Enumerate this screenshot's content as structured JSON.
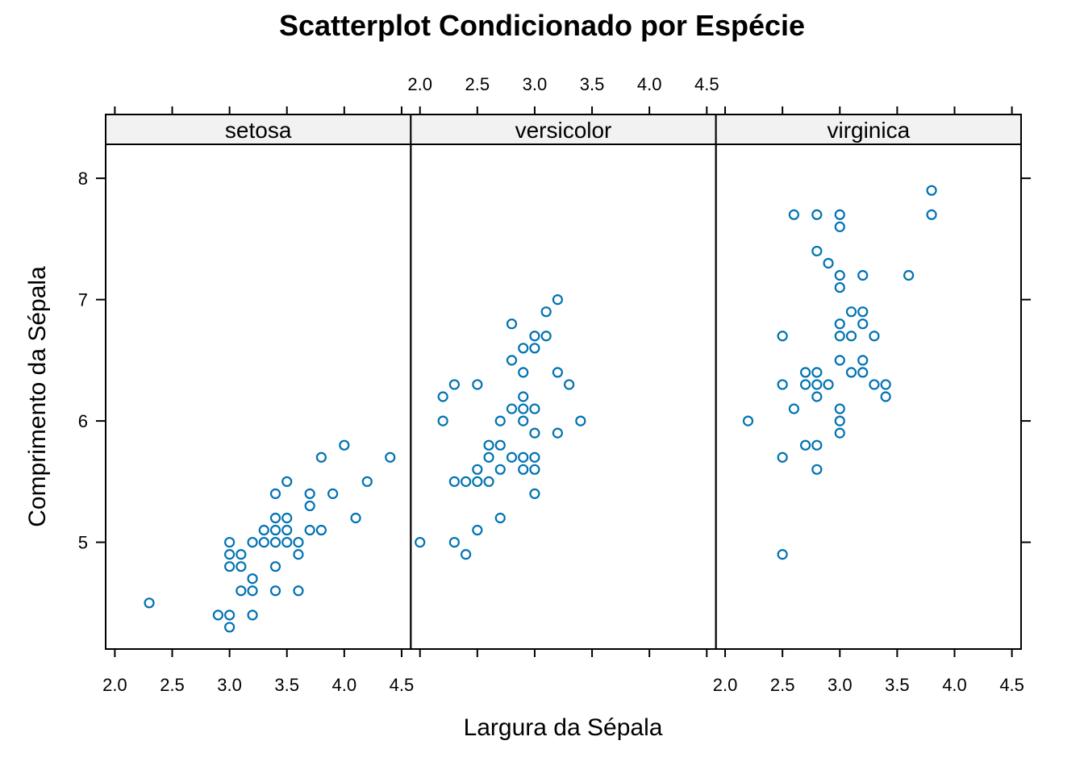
{
  "colors": {
    "point": "#0080ff",
    "point_stroke": "#0072b2",
    "strip_fill": "#f2f2f2",
    "axis": "#000000"
  },
  "chart_data": {
    "type": "scatter",
    "title": "Scatterplot Condicionado por Espécie",
    "xlabel": "Largura da Sépala",
    "ylabel": "Comprimento da Sépala",
    "xlim": [
      1.92,
      4.58
    ],
    "ylim": [
      4.12,
      8.28
    ],
    "x_ticks": [
      "2.0",
      "2.5",
      "3.0",
      "3.5",
      "4.0",
      "4.5"
    ],
    "y_ticks": [
      "5",
      "6",
      "7",
      "8"
    ],
    "marker": "open-circle",
    "panels": [
      {
        "name": "setosa",
        "points": [
          [
            2.3,
            4.5
          ],
          [
            2.9,
            4.4
          ],
          [
            3.0,
            4.4
          ],
          [
            3.0,
            4.3
          ],
          [
            3.0,
            5.0
          ],
          [
            3.0,
            4.9
          ],
          [
            3.0,
            4.8
          ],
          [
            3.1,
            4.9
          ],
          [
            3.1,
            4.8
          ],
          [
            3.1,
            4.6
          ],
          [
            3.2,
            5.0
          ],
          [
            3.2,
            4.7
          ],
          [
            3.2,
            4.6
          ],
          [
            3.2,
            4.4
          ],
          [
            3.3,
            5.1
          ],
          [
            3.3,
            5.0
          ],
          [
            3.4,
            5.4
          ],
          [
            3.4,
            5.2
          ],
          [
            3.4,
            5.1
          ],
          [
            3.4,
            5.0
          ],
          [
            3.4,
            4.8
          ],
          [
            3.4,
            4.6
          ],
          [
            3.5,
            5.5
          ],
          [
            3.5,
            5.2
          ],
          [
            3.5,
            5.1
          ],
          [
            3.5,
            5.0
          ],
          [
            3.6,
            5.0
          ],
          [
            3.6,
            4.9
          ],
          [
            3.6,
            4.6
          ],
          [
            3.7,
            5.4
          ],
          [
            3.7,
            5.3
          ],
          [
            3.7,
            5.1
          ],
          [
            3.8,
            5.7
          ],
          [
            3.8,
            5.1
          ],
          [
            3.9,
            5.4
          ],
          [
            4.0,
            5.8
          ],
          [
            4.1,
            5.2
          ],
          [
            4.2,
            5.5
          ],
          [
            4.4,
            5.7
          ]
        ]
      },
      {
        "name": "versicolor",
        "points": [
          [
            2.0,
            5.0
          ],
          [
            2.2,
            6.2
          ],
          [
            2.2,
            6.0
          ],
          [
            2.3,
            6.3
          ],
          [
            2.3,
            5.5
          ],
          [
            2.3,
            5.0
          ],
          [
            2.4,
            5.5
          ],
          [
            2.4,
            4.9
          ],
          [
            2.5,
            6.3
          ],
          [
            2.5,
            5.6
          ],
          [
            2.5,
            5.5
          ],
          [
            2.5,
            5.1
          ],
          [
            2.6,
            5.8
          ],
          [
            2.6,
            5.7
          ],
          [
            2.6,
            5.5
          ],
          [
            2.7,
            6.0
          ],
          [
            2.7,
            5.8
          ],
          [
            2.7,
            5.6
          ],
          [
            2.7,
            5.2
          ],
          [
            2.8,
            6.8
          ],
          [
            2.8,
            6.5
          ],
          [
            2.8,
            6.1
          ],
          [
            2.8,
            5.7
          ],
          [
            2.9,
            6.6
          ],
          [
            2.9,
            6.4
          ],
          [
            2.9,
            6.2
          ],
          [
            2.9,
            6.1
          ],
          [
            2.9,
            6.0
          ],
          [
            2.9,
            5.7
          ],
          [
            2.9,
            5.6
          ],
          [
            3.0,
            6.7
          ],
          [
            3.0,
            6.6
          ],
          [
            3.0,
            6.1
          ],
          [
            3.0,
            5.9
          ],
          [
            3.0,
            5.7
          ],
          [
            3.0,
            5.6
          ],
          [
            3.0,
            5.4
          ],
          [
            3.1,
            6.9
          ],
          [
            3.1,
            6.7
          ],
          [
            3.2,
            7.0
          ],
          [
            3.2,
            6.4
          ],
          [
            3.2,
            5.9
          ],
          [
            3.3,
            6.3
          ],
          [
            3.4,
            6.0
          ]
        ]
      },
      {
        "name": "virginica",
        "points": [
          [
            2.2,
            6.0
          ],
          [
            2.5,
            6.7
          ],
          [
            2.5,
            6.3
          ],
          [
            2.5,
            5.7
          ],
          [
            2.5,
            4.9
          ],
          [
            2.6,
            7.7
          ],
          [
            2.6,
            6.1
          ],
          [
            2.7,
            6.4
          ],
          [
            2.7,
            6.3
          ],
          [
            2.7,
            5.8
          ],
          [
            2.8,
            7.7
          ],
          [
            2.8,
            7.4
          ],
          [
            2.8,
            6.4
          ],
          [
            2.8,
            6.3
          ],
          [
            2.8,
            6.2
          ],
          [
            2.8,
            5.8
          ],
          [
            2.8,
            5.6
          ],
          [
            2.9,
            7.3
          ],
          [
            2.9,
            6.3
          ],
          [
            3.0,
            7.7
          ],
          [
            3.0,
            7.6
          ],
          [
            3.0,
            7.2
          ],
          [
            3.0,
            7.1
          ],
          [
            3.0,
            6.8
          ],
          [
            3.0,
            6.7
          ],
          [
            3.0,
            6.5
          ],
          [
            3.0,
            6.1
          ],
          [
            3.0,
            6.0
          ],
          [
            3.0,
            5.9
          ],
          [
            3.1,
            6.9
          ],
          [
            3.1,
            6.7
          ],
          [
            3.1,
            6.4
          ],
          [
            3.2,
            7.2
          ],
          [
            3.2,
            6.9
          ],
          [
            3.2,
            6.8
          ],
          [
            3.2,
            6.5
          ],
          [
            3.2,
            6.4
          ],
          [
            3.3,
            6.7
          ],
          [
            3.3,
            6.3
          ],
          [
            3.4,
            6.3
          ],
          [
            3.4,
            6.2
          ],
          [
            3.6,
            7.2
          ],
          [
            3.8,
            7.9
          ],
          [
            3.8,
            7.7
          ]
        ]
      }
    ]
  }
}
